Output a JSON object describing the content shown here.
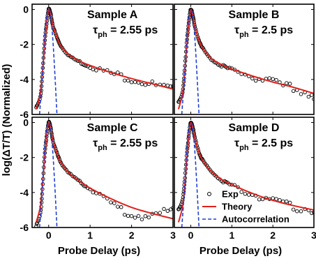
{
  "chart_data": {
    "type": "line",
    "ylabel": "log(ΔT/T) (Normalized)",
    "xlabel": "Probe Delay (ps)",
    "xlim": [
      -0.4,
      3
    ],
    "ylim": [
      -6,
      0.3
    ],
    "xticks": [
      "0",
      "1",
      "2",
      "3"
    ],
    "yticks": [
      "0",
      "-2",
      "-4",
      "-6"
    ],
    "legend": {
      "placement": "bottom-right of panel D",
      "entries": [
        {
          "label": "Exp",
          "style": "open circles",
          "color": "#000000"
        },
        {
          "label": "Theory",
          "style": "solid line",
          "color": "#e0201a"
        },
        {
          "label": "Autocorrelation",
          "style": "dashed line",
          "color": "#1f3fd6"
        }
      ]
    },
    "panels": [
      {
        "id": "A",
        "title": "Sample A",
        "tau_symbol": "τ",
        "tau_sub": "ph",
        "tau_value": " = 2.55 ps",
        "series": [
          {
            "name": "Exp",
            "x": [
              -0.3,
              -0.2,
              -0.15,
              -0.1,
              -0.05,
              0,
              0.05,
              0.1,
              0.2,
              0.3,
              0.5,
              0.75,
              1.0,
              1.5,
              2.0,
              2.5,
              3.0
            ],
            "y": [
              -5.6,
              -5.0,
              -3.6,
              -2.0,
              -0.8,
              0,
              -0.3,
              -0.9,
              -1.6,
              -2.1,
              -2.65,
              -3.0,
              -3.25,
              -3.65,
              -3.95,
              -4.3,
              -4.6
            ]
          },
          {
            "name": "Theory",
            "x": [
              -0.3,
              -0.2,
              -0.15,
              -0.1,
              -0.05,
              0,
              0.05,
              0.1,
              0.2,
              0.3,
              0.5,
              0.75,
              1.0,
              1.5,
              2.0,
              2.5,
              3.0
            ],
            "y": [
              -5.7,
              -4.8,
              -3.6,
              -2.1,
              -0.8,
              -0.02,
              -0.3,
              -0.9,
              -1.6,
              -2.1,
              -2.6,
              -2.95,
              -3.2,
              -3.6,
              -3.95,
              -4.25,
              -4.55
            ]
          },
          {
            "name": "Autocorrelation",
            "x": [
              -0.22,
              -0.15,
              -0.1,
              -0.05,
              0,
              0.05,
              0.1,
              0.15,
              0.2
            ],
            "y": [
              -6,
              -3.7,
              -1.7,
              -0.45,
              0,
              -0.45,
              -1.7,
              -3.7,
              -6
            ]
          }
        ]
      },
      {
        "id": "B",
        "title": "Sample B",
        "tau_symbol": "τ",
        "tau_sub": "ph",
        "tau_value": " = 2.5 ps",
        "series": [
          {
            "name": "Exp",
            "x": [
              -0.3,
              -0.2,
              -0.15,
              -0.1,
              -0.05,
              0,
              0.05,
              0.1,
              0.2,
              0.3,
              0.5,
              0.75,
              1.0,
              1.5,
              2.0,
              2.5,
              3.0
            ],
            "y": [
              -5.3,
              -4.7,
              -3.5,
              -1.9,
              -0.8,
              0,
              -0.35,
              -1.0,
              -1.75,
              -2.25,
              -2.85,
              -3.2,
              -3.45,
              -3.85,
              -4.2,
              -4.5,
              -4.9
            ]
          },
          {
            "name": "Theory",
            "x": [
              -0.3,
              -0.2,
              -0.15,
              -0.1,
              -0.05,
              0,
              0.05,
              0.1,
              0.2,
              0.3,
              0.5,
              0.75,
              1.0,
              1.5,
              2.0,
              2.5,
              3.0
            ],
            "y": [
              -5.7,
              -4.8,
              -3.6,
              -2.1,
              -0.8,
              -0.02,
              -0.35,
              -1.0,
              -1.75,
              -2.25,
              -2.8,
              -3.15,
              -3.4,
              -3.8,
              -4.15,
              -4.45,
              -4.8
            ]
          },
          {
            "name": "Autocorrelation",
            "x": [
              -0.22,
              -0.15,
              -0.1,
              -0.05,
              0,
              0.05,
              0.1,
              0.15,
              0.2
            ],
            "y": [
              -6,
              -3.7,
              -1.7,
              -0.45,
              0,
              -0.45,
              -1.7,
              -3.7,
              -6
            ]
          }
        ]
      },
      {
        "id": "C",
        "title": "Sample C",
        "tau_symbol": "τ",
        "tau_sub": "ph",
        "tau_value": " = 2.55 ps",
        "series": [
          {
            "name": "Exp",
            "x": [
              -0.3,
              -0.2,
              -0.15,
              -0.1,
              -0.05,
              0,
              0.05,
              0.1,
              0.2,
              0.3,
              0.5,
              0.75,
              1.0,
              1.5,
              2.0,
              2.5,
              3.0
            ],
            "y": [
              -5.9,
              -5.2,
              -3.8,
              -2.0,
              -0.8,
              0,
              -0.35,
              -1.0,
              -1.75,
              -2.3,
              -2.9,
              -3.4,
              -3.8,
              -4.6,
              -5.2,
              -5.3,
              -5.0
            ]
          },
          {
            "name": "Theory",
            "x": [
              -0.3,
              -0.2,
              -0.15,
              -0.1,
              -0.05,
              0,
              0.05,
              0.1,
              0.2,
              0.3,
              0.5,
              0.75,
              1.0,
              1.5,
              2.0,
              2.5,
              3.0
            ],
            "y": [
              -5.7,
              -4.8,
              -3.6,
              -2.1,
              -0.8,
              -0.02,
              -0.35,
              -1.0,
              -1.75,
              -2.3,
              -2.9,
              -3.35,
              -3.75,
              -4.35,
              -4.85,
              -5.2,
              -5.5
            ]
          },
          {
            "name": "Autocorrelation",
            "x": [
              -0.22,
              -0.15,
              -0.1,
              -0.05,
              0,
              0.05,
              0.1,
              0.15,
              0.2
            ],
            "y": [
              -6,
              -3.7,
              -1.7,
              -0.45,
              0,
              -0.45,
              -1.7,
              -3.7,
              -6
            ]
          }
        ]
      },
      {
        "id": "D",
        "title": "Sample D",
        "tau_symbol": "τ",
        "tau_sub": "ph",
        "tau_value": " = 2.5 ps",
        "series": [
          {
            "name": "Exp",
            "x": [
              -0.3,
              -0.2,
              -0.15,
              -0.1,
              -0.05,
              0,
              0.05,
              0.1,
              0.2,
              0.3,
              0.5,
              0.75,
              1.0,
              1.5,
              2.0,
              2.5,
              3.0
            ],
            "y": [
              -5.0,
              -4.4,
              -3.4,
              -1.9,
              -0.8,
              0,
              -0.3,
              -0.9,
              -1.7,
              -2.2,
              -2.8,
              -3.3,
              -3.6,
              -4.1,
              -4.5,
              -4.8,
              -5.0
            ]
          },
          {
            "name": "Theory",
            "x": [
              -0.3,
              -0.2,
              -0.15,
              -0.1,
              -0.05,
              0,
              0.05,
              0.1,
              0.2,
              0.3,
              0.5,
              0.75,
              1.0,
              1.5,
              2.0,
              2.5,
              3.0
            ],
            "y": [
              -5.7,
              -4.8,
              -3.6,
              -2.1,
              -0.8,
              -0.02,
              -0.3,
              -0.9,
              -1.7,
              -2.2,
              -2.8,
              -3.25,
              -3.55,
              -4.05,
              -4.45,
              -4.75,
              -5.0
            ]
          },
          {
            "name": "Autocorrelation",
            "x": [
              -0.22,
              -0.15,
              -0.1,
              -0.05,
              0,
              0.05,
              0.1,
              0.15,
              0.2
            ],
            "y": [
              -6,
              -3.7,
              -1.7,
              -0.45,
              0,
              -0.45,
              -1.7,
              -3.7,
              -6
            ]
          }
        ]
      }
    ]
  }
}
